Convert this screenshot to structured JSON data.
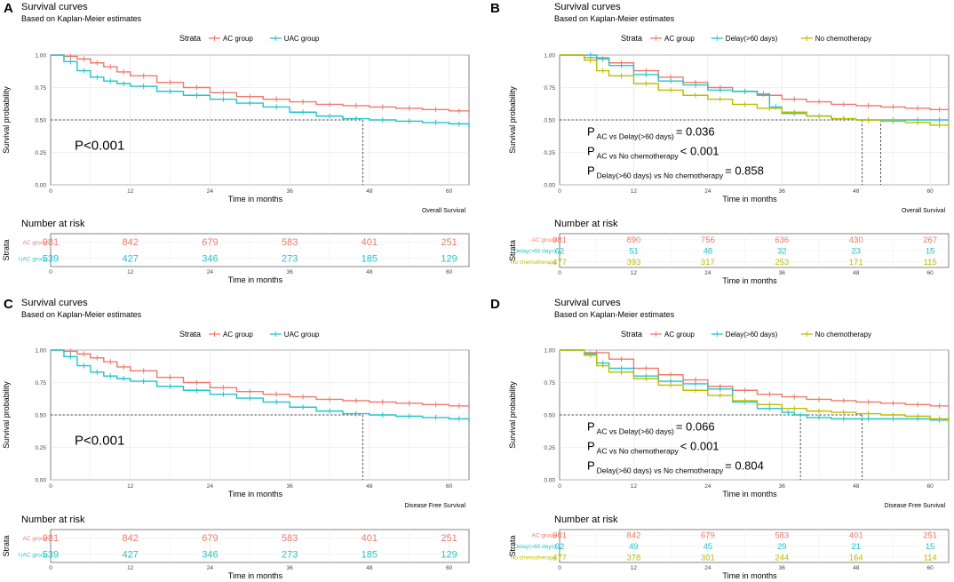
{
  "colors": {
    "ac": "#F07A6B",
    "uac": "#22C5C9",
    "delay": "#22C5C9",
    "nochemo": "#BDBD00"
  },
  "common": {
    "title": "Survival curves",
    "subtitle": "Based on Kaplan-Meier estimates",
    "strata_label": "Strata",
    "ylabel": "Survival probability",
    "xlabel": "Time in months",
    "risk_title": "Number at risk",
    "risk_ylabel": "Strata"
  },
  "chart_data": [
    {
      "panel": "A",
      "type": "line",
      "caption": "Overall Survival",
      "xlim": [
        0,
        63
      ],
      "ylim": [
        0,
        1
      ],
      "xticks": [
        0,
        12,
        24,
        36,
        48,
        60
      ],
      "yticks": [
        "0.00",
        "0.25",
        "0.50",
        "0.75",
        "1.00"
      ],
      "series": [
        {
          "name": "AC group",
          "key": "ac",
          "x": [
            0,
            2,
            4,
            6,
            8,
            10,
            12,
            16,
            20,
            24,
            28,
            32,
            36,
            40,
            44,
            48,
            52,
            56,
            60,
            63
          ],
          "y": [
            1.0,
            0.99,
            0.97,
            0.94,
            0.91,
            0.87,
            0.84,
            0.79,
            0.75,
            0.71,
            0.68,
            0.66,
            0.64,
            0.62,
            0.61,
            0.6,
            0.59,
            0.58,
            0.57,
            0.555
          ]
        },
        {
          "name": "UAC group",
          "key": "uac",
          "x": [
            0,
            2,
            4,
            6,
            8,
            10,
            12,
            16,
            20,
            24,
            28,
            32,
            36,
            40,
            44,
            48,
            52,
            56,
            60,
            63
          ],
          "y": [
            1.0,
            0.95,
            0.88,
            0.83,
            0.8,
            0.78,
            0.76,
            0.72,
            0.69,
            0.66,
            0.63,
            0.6,
            0.56,
            0.53,
            0.51,
            0.5,
            0.49,
            0.48,
            0.47,
            0.44
          ]
        }
      ],
      "median_lines": [
        47
      ],
      "pvalue": "P<0.001",
      "risk": {
        "x": [
          0,
          12,
          24,
          36,
          48,
          60
        ],
        "rows": [
          {
            "label": "AC group",
            "key": "ac",
            "values": [
              981,
              842,
              679,
              583,
              401,
              251
            ]
          },
          {
            "label": "UAC group",
            "key": "uac",
            "values": [
              539,
              427,
              346,
              273,
              185,
              129
            ]
          }
        ]
      }
    },
    {
      "panel": "B",
      "type": "line",
      "caption": "Overall Survival",
      "xlim": [
        0,
        63
      ],
      "ylim": [
        0,
        1
      ],
      "xticks": [
        0,
        12,
        24,
        36,
        48,
        60
      ],
      "yticks": [
        "0.00",
        "0.25",
        "0.50",
        "0.75",
        "1.00"
      ],
      "series": [
        {
          "name": "AC group",
          "key": "ac",
          "x": [
            0,
            4,
            8,
            12,
            16,
            20,
            24,
            28,
            32,
            36,
            40,
            44,
            48,
            52,
            56,
            60,
            63
          ],
          "y": [
            1.0,
            0.98,
            0.94,
            0.88,
            0.83,
            0.79,
            0.75,
            0.72,
            0.69,
            0.66,
            0.64,
            0.62,
            0.61,
            0.6,
            0.59,
            0.58,
            0.57
          ]
        },
        {
          "name": "Delay(>60 days)",
          "key": "delay",
          "x": [
            0,
            4,
            6,
            8,
            12,
            16,
            20,
            24,
            28,
            32,
            34,
            36,
            40,
            44,
            48,
            52,
            56,
            60,
            63
          ],
          "y": [
            1.0,
            1.0,
            0.97,
            0.92,
            0.85,
            0.8,
            0.77,
            0.73,
            0.72,
            0.7,
            0.6,
            0.55,
            0.53,
            0.51,
            0.5,
            0.5,
            0.5,
            0.5,
            0.5
          ]
        },
        {
          "name": "No chemotherapy",
          "key": "nochemo",
          "x": [
            0,
            4,
            6,
            8,
            12,
            16,
            20,
            24,
            28,
            32,
            36,
            40,
            44,
            48,
            52,
            56,
            60,
            63
          ],
          "y": [
            1.0,
            0.96,
            0.88,
            0.84,
            0.78,
            0.73,
            0.69,
            0.66,
            0.62,
            0.59,
            0.56,
            0.53,
            0.51,
            0.5,
            0.49,
            0.48,
            0.46,
            0.44
          ]
        }
      ],
      "median_lines": [
        49,
        52
      ],
      "pvalues": [
        {
          "p": "P",
          "sub": "AC vs Delay(>60 days)",
          "val": "= 0.036"
        },
        {
          "p": "P",
          "sub": "AC vs No chemotherapy",
          "val": "< 0.001"
        },
        {
          "p": "P",
          "sub": "Delay(>60 days) vs No chemotherapy",
          "val": "= 0.858"
        }
      ],
      "risk": {
        "x": [
          0,
          12,
          24,
          36,
          48,
          60
        ],
        "rows": [
          {
            "label": "AC group",
            "key": "ac",
            "values": [
              981,
              890,
              756,
              636,
              430,
              267
            ]
          },
          {
            "label": "Delay(>60 days)",
            "key": "delay",
            "values": [
              62,
              51,
              48,
              32,
              23,
              15
            ]
          },
          {
            "label": "No chemotherapy",
            "key": "nochemo",
            "values": [
              477,
              393,
              317,
              253,
              171,
              115
            ]
          }
        ]
      }
    },
    {
      "panel": "C",
      "type": "line",
      "caption": "Disease Free Survival",
      "xlim": [
        0,
        63
      ],
      "ylim": [
        0,
        1
      ],
      "xticks": [
        0,
        12,
        24,
        36,
        48,
        60
      ],
      "yticks": [
        "0.00",
        "0.25",
        "0.50",
        "0.75",
        "1.00"
      ],
      "series": [
        {
          "name": "AC group",
          "key": "ac",
          "x": [
            0,
            2,
            4,
            6,
            8,
            10,
            12,
            16,
            20,
            24,
            28,
            32,
            36,
            40,
            44,
            48,
            52,
            56,
            60,
            63
          ],
          "y": [
            1.0,
            0.99,
            0.97,
            0.94,
            0.91,
            0.87,
            0.84,
            0.79,
            0.75,
            0.71,
            0.68,
            0.66,
            0.64,
            0.62,
            0.61,
            0.6,
            0.59,
            0.58,
            0.57,
            0.555
          ]
        },
        {
          "name": "UAC group",
          "key": "uac",
          "x": [
            0,
            2,
            4,
            6,
            8,
            10,
            12,
            16,
            20,
            24,
            28,
            32,
            36,
            40,
            44,
            48,
            52,
            56,
            60,
            63
          ],
          "y": [
            1.0,
            0.95,
            0.88,
            0.83,
            0.8,
            0.78,
            0.76,
            0.72,
            0.69,
            0.66,
            0.63,
            0.6,
            0.56,
            0.53,
            0.51,
            0.5,
            0.49,
            0.48,
            0.47,
            0.45
          ]
        }
      ],
      "median_lines": [
        47
      ],
      "pvalue": "P<0.001",
      "risk": {
        "x": [
          0,
          12,
          24,
          36,
          48,
          60
        ],
        "rows": [
          {
            "label": "AC group",
            "key": "ac",
            "values": [
              981,
              842,
              679,
              583,
              401,
              251
            ]
          },
          {
            "label": "UAC group",
            "key": "uac",
            "values": [
              539,
              427,
              346,
              273,
              185,
              129
            ]
          }
        ]
      }
    },
    {
      "panel": "D",
      "type": "line",
      "caption": "Disease Free Survival",
      "xlim": [
        0,
        63
      ],
      "ylim": [
        0,
        1
      ],
      "xticks": [
        0,
        12,
        24,
        36,
        48,
        60
      ],
      "yticks": [
        "0.00",
        "0.25",
        "0.50",
        "0.75",
        "1.00"
      ],
      "series": [
        {
          "name": "AC group",
          "key": "ac",
          "x": [
            0,
            4,
            8,
            12,
            16,
            20,
            24,
            28,
            32,
            36,
            40,
            44,
            48,
            52,
            56,
            60,
            63
          ],
          "y": [
            1.0,
            0.98,
            0.93,
            0.86,
            0.81,
            0.77,
            0.72,
            0.69,
            0.66,
            0.64,
            0.62,
            0.61,
            0.6,
            0.59,
            0.58,
            0.57,
            0.56
          ]
        },
        {
          "name": "Delay(>60 days)",
          "key": "delay",
          "x": [
            0,
            4,
            6,
            8,
            12,
            16,
            20,
            24,
            28,
            32,
            36,
            38,
            40,
            44,
            48,
            52,
            56,
            60,
            63
          ],
          "y": [
            1.0,
            0.97,
            0.9,
            0.86,
            0.8,
            0.76,
            0.74,
            0.7,
            0.6,
            0.55,
            0.52,
            0.5,
            0.48,
            0.47,
            0.47,
            0.47,
            0.47,
            0.46,
            0.46
          ]
        },
        {
          "name": "No chemotherapy",
          "key": "nochemo",
          "x": [
            0,
            4,
            6,
            8,
            12,
            16,
            20,
            24,
            28,
            32,
            36,
            40,
            44,
            48,
            52,
            56,
            60,
            63
          ],
          "y": [
            1.0,
            0.96,
            0.88,
            0.83,
            0.78,
            0.73,
            0.69,
            0.65,
            0.61,
            0.58,
            0.55,
            0.53,
            0.52,
            0.51,
            0.5,
            0.49,
            0.47,
            0.44
          ]
        }
      ],
      "median_lines": [
        39,
        49
      ],
      "pvalues": [
        {
          "p": "P",
          "sub": "AC vs Delay(>60 days)",
          "val": "= 0.066"
        },
        {
          "p": "P",
          "sub": "AC vs No chemotherapy",
          "val": "< 0.001"
        },
        {
          "p": "P",
          "sub": "Delay(>60 days) vs No chemotherapy",
          "val": "= 0.804"
        }
      ],
      "risk": {
        "x": [
          0,
          12,
          24,
          36,
          48,
          60
        ],
        "rows": [
          {
            "label": "AC group",
            "key": "ac",
            "values": [
              981,
              842,
              679,
              583,
              401,
              251
            ]
          },
          {
            "label": "Delay(>60 days)",
            "key": "delay",
            "values": [
              62,
              49,
              45,
              29,
              21,
              15
            ]
          },
          {
            "label": "No chemotherapy",
            "key": "nochemo",
            "values": [
              477,
              378,
              301,
              244,
              164,
              114
            ]
          }
        ]
      }
    }
  ]
}
